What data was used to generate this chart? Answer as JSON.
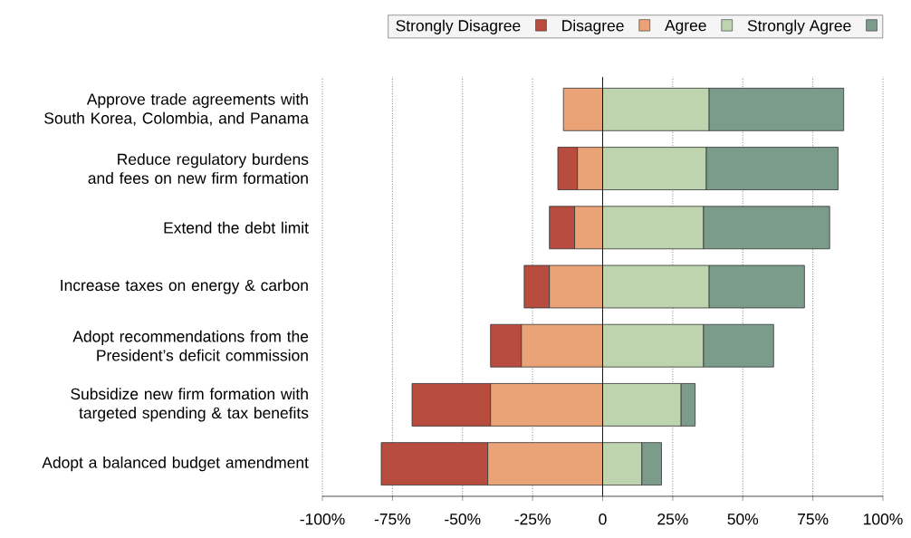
{
  "chart_data": {
    "type": "bar",
    "orientation": "horizontal",
    "categories": [
      "Approve trade agreements with South Korea, Colombia, and Panama",
      "Reduce regulatory burdens and fees on new firm formation",
      "Extend the debt limit",
      "Increase taxes on energy & carbon",
      "Adopt recommendations from the President’s deficit commission",
      "Subsidize new firm formation with targeted spending & tax benefits",
      "Adopt a balanced budget amendment"
    ],
    "series": [
      {
        "name": "Strongly Disagree",
        "color": "#b84c3e",
        "values": [
          null,
          7,
          9,
          9,
          11,
          28,
          38
        ],
        "base": [
          null,
          -16,
          -19,
          -28,
          -40,
          -68,
          -79
        ]
      },
      {
        "name": "Disagree",
        "color": "#e9a376",
        "values": [
          14,
          9,
          10,
          19,
          29,
          40,
          41
        ],
        "base": [
          -14,
          -9,
          -10,
          -19,
          -29,
          -40,
          -41
        ]
      },
      {
        "name": "Agree",
        "color": "#bed4ae",
        "values": [
          38,
          37,
          36,
          38,
          36,
          28,
          14
        ],
        "base": [
          0,
          0,
          0,
          0,
          0,
          0,
          0
        ]
      },
      {
        "name": "Strongly Agree",
        "color": "#7b9c8a",
        "values": [
          48,
          47,
          45,
          34,
          25,
          5,
          7
        ],
        "base": [
          38,
          37,
          36,
          38,
          36,
          28,
          14
        ]
      }
    ],
    "xlim": [
      -100,
      100
    ],
    "xticks": [
      {
        "value": -100,
        "label": "-100%"
      },
      {
        "value": -75,
        "label": "-75%"
      },
      {
        "value": -50,
        "label": "-50%"
      },
      {
        "value": -25,
        "label": "-25%"
      },
      0,
      {
        "value": 25,
        "label": "25%"
      },
      {
        "value": 50,
        "label": "50%"
      },
      {
        "value": 75,
        "label": "75%"
      },
      {
        "value": 100,
        "label": "100%"
      }
    ],
    "ref_lines": [
      {
        "axis": "x",
        "value": 0
      }
    ],
    "grid": "x",
    "legend": "top"
  }
}
